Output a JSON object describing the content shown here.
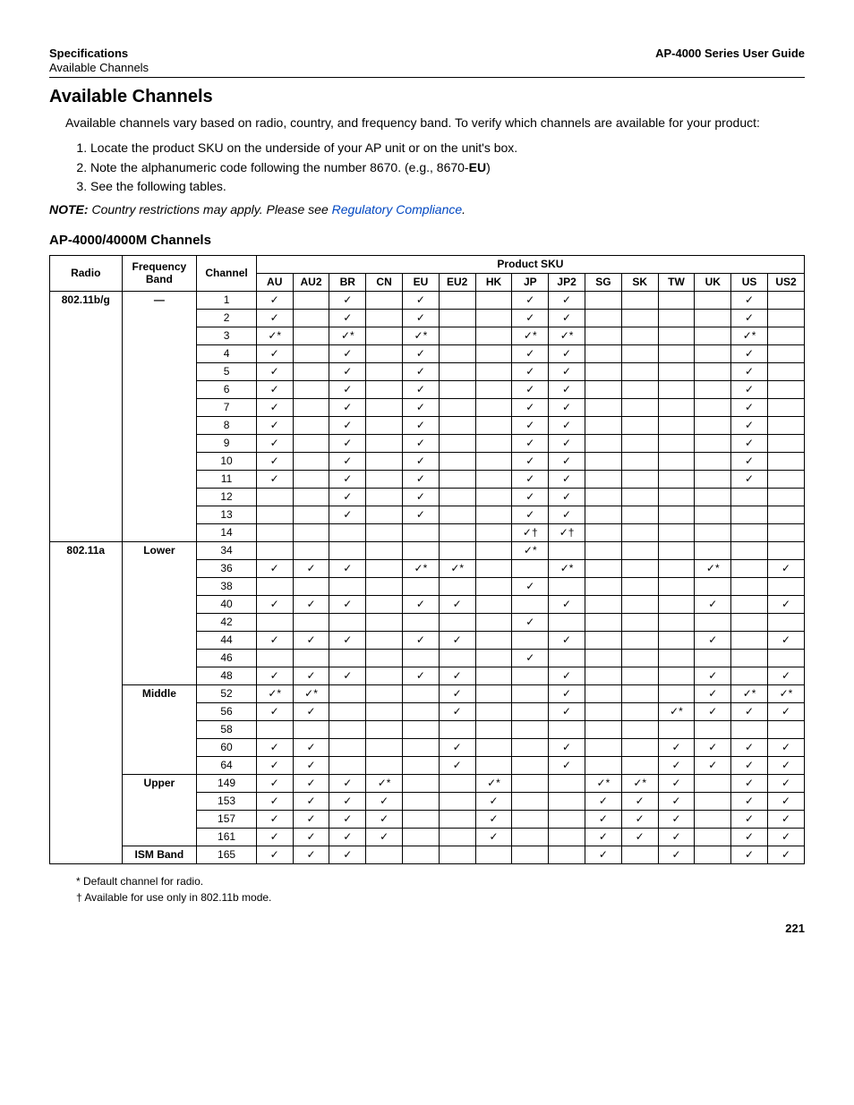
{
  "header": {
    "left_bold": "Specifications",
    "right_bold": "AP-4000 Series User Guide",
    "sub_left": "Available Channels"
  },
  "title": "Available Channels",
  "intro": "Available channels vary based on radio, country, and frequency band. To verify which channels are available for your product:",
  "steps": [
    "Locate the product SKU on the underside of your AP unit or on the unit's box.",
    "Note the alphanumeric code following the number 8670. (e.g., 8670-",
    "See the following tables."
  ],
  "step2_bold": "EU",
  "step2_tail": ")",
  "note_label": "NOTE:",
  "note_body": "Country restrictions may apply. Please see ",
  "note_link": "Regulatory Compliance",
  "note_tail": ".",
  "subsection": "AP-4000/4000M Channels",
  "cols": {
    "radio": "Radio",
    "band": "Frequency Band",
    "channel": "Channel",
    "psku": "Product SKU"
  },
  "skus": [
    "AU",
    "AU2",
    "BR",
    "CN",
    "EU",
    "EU2",
    "HK",
    "JP",
    "JP2",
    "SG",
    "SK",
    "TW",
    "UK",
    "US",
    "US2"
  ],
  "check": "✓",
  "star": "✓*",
  "dagger": "✓†",
  "radio_bg": "802.11b/g",
  "band_bg": "—",
  "radio_a": "802.11a",
  "band_lower": "Lower",
  "band_middle": "Middle",
  "band_upper": "Upper",
  "band_ism": "ISM Band",
  "rows_bg": [
    {
      "ch": "1",
      "m": [
        "c",
        "",
        "c",
        "",
        "c",
        "",
        "",
        "c",
        "c",
        "",
        "",
        "",
        "",
        "c",
        ""
      ]
    },
    {
      "ch": "2",
      "m": [
        "c",
        "",
        "c",
        "",
        "c",
        "",
        "",
        "c",
        "c",
        "",
        "",
        "",
        "",
        "c",
        ""
      ]
    },
    {
      "ch": "3",
      "m": [
        "s",
        "",
        "s",
        "",
        "s",
        "",
        "",
        "s",
        "s",
        "",
        "",
        "",
        "",
        "s",
        ""
      ]
    },
    {
      "ch": "4",
      "m": [
        "c",
        "",
        "c",
        "",
        "c",
        "",
        "",
        "c",
        "c",
        "",
        "",
        "",
        "",
        "c",
        ""
      ]
    },
    {
      "ch": "5",
      "m": [
        "c",
        "",
        "c",
        "",
        "c",
        "",
        "",
        "c",
        "c",
        "",
        "",
        "",
        "",
        "c",
        ""
      ]
    },
    {
      "ch": "6",
      "m": [
        "c",
        "",
        "c",
        "",
        "c",
        "",
        "",
        "c",
        "c",
        "",
        "",
        "",
        "",
        "c",
        ""
      ]
    },
    {
      "ch": "7",
      "m": [
        "c",
        "",
        "c",
        "",
        "c",
        "",
        "",
        "c",
        "c",
        "",
        "",
        "",
        "",
        "c",
        ""
      ]
    },
    {
      "ch": "8",
      "m": [
        "c",
        "",
        "c",
        "",
        "c",
        "",
        "",
        "c",
        "c",
        "",
        "",
        "",
        "",
        "c",
        ""
      ]
    },
    {
      "ch": "9",
      "m": [
        "c",
        "",
        "c",
        "",
        "c",
        "",
        "",
        "c",
        "c",
        "",
        "",
        "",
        "",
        "c",
        ""
      ]
    },
    {
      "ch": "10",
      "m": [
        "c",
        "",
        "c",
        "",
        "c",
        "",
        "",
        "c",
        "c",
        "",
        "",
        "",
        "",
        "c",
        ""
      ]
    },
    {
      "ch": "11",
      "m": [
        "c",
        "",
        "c",
        "",
        "c",
        "",
        "",
        "c",
        "c",
        "",
        "",
        "",
        "",
        "c",
        ""
      ]
    },
    {
      "ch": "12",
      "m": [
        "",
        "",
        "c",
        "",
        "c",
        "",
        "",
        "c",
        "c",
        "",
        "",
        "",
        "",
        "",
        ""
      ]
    },
    {
      "ch": "13",
      "m": [
        "",
        "",
        "c",
        "",
        "c",
        "",
        "",
        "c",
        "c",
        "",
        "",
        "",
        "",
        "",
        ""
      ]
    },
    {
      "ch": "14",
      "m": [
        "",
        "",
        "",
        "",
        "",
        "",
        "",
        "d",
        "d",
        "",
        "",
        "",
        "",
        "",
        ""
      ]
    }
  ],
  "rows_lower": [
    {
      "ch": "34",
      "m": [
        "",
        "",
        "",
        "",
        "",
        "",
        "",
        "s",
        "",
        "",
        "",
        "",
        "",
        "",
        ""
      ]
    },
    {
      "ch": "36",
      "m": [
        "c",
        "c",
        "c",
        "",
        "s",
        "s",
        "",
        "",
        "s",
        "",
        "",
        "",
        "s",
        "",
        "c"
      ]
    },
    {
      "ch": "38",
      "m": [
        "",
        "",
        "",
        "",
        "",
        "",
        "",
        "c",
        "",
        "",
        "",
        "",
        "",
        "",
        ""
      ]
    },
    {
      "ch": "40",
      "m": [
        "c",
        "c",
        "c",
        "",
        "c",
        "c",
        "",
        "",
        "c",
        "",
        "",
        "",
        "c",
        "",
        "c"
      ]
    },
    {
      "ch": "42",
      "m": [
        "",
        "",
        "",
        "",
        "",
        "",
        "",
        "c",
        "",
        "",
        "",
        "",
        "",
        "",
        ""
      ]
    },
    {
      "ch": "44",
      "m": [
        "c",
        "c",
        "c",
        "",
        "c",
        "c",
        "",
        "",
        "c",
        "",
        "",
        "",
        "c",
        "",
        "c"
      ]
    },
    {
      "ch": "46",
      "m": [
        "",
        "",
        "",
        "",
        "",
        "",
        "",
        "c",
        "",
        "",
        "",
        "",
        "",
        "",
        ""
      ]
    },
    {
      "ch": "48",
      "m": [
        "c",
        "c",
        "c",
        "",
        "c",
        "c",
        "",
        "",
        "c",
        "",
        "",
        "",
        "c",
        "",
        "c"
      ]
    }
  ],
  "rows_middle": [
    {
      "ch": "52",
      "m": [
        "s",
        "s",
        "",
        "",
        "",
        "c",
        "",
        "",
        "c",
        "",
        "",
        "",
        "c",
        "s",
        "s"
      ]
    },
    {
      "ch": "56",
      "m": [
        "c",
        "c",
        "",
        "",
        "",
        "c",
        "",
        "",
        "c",
        "",
        "",
        "s",
        "c",
        "c",
        "c"
      ]
    },
    {
      "ch": "58",
      "m": [
        "",
        "",
        "",
        "",
        "",
        "",
        "",
        "",
        "",
        "",
        "",
        "",
        "",
        "",
        ""
      ]
    },
    {
      "ch": "60",
      "m": [
        "c",
        "c",
        "",
        "",
        "",
        "c",
        "",
        "",
        "c",
        "",
        "",
        "c",
        "c",
        "c",
        "c"
      ]
    },
    {
      "ch": "64",
      "m": [
        "c",
        "c",
        "",
        "",
        "",
        "c",
        "",
        "",
        "c",
        "",
        "",
        "c",
        "c",
        "c",
        "c"
      ]
    }
  ],
  "rows_upper": [
    {
      "ch": "149",
      "m": [
        "c",
        "c",
        "c",
        "s",
        "",
        "",
        "s",
        "",
        "",
        "s",
        "s",
        "c",
        "",
        "c",
        "c"
      ]
    },
    {
      "ch": "153",
      "m": [
        "c",
        "c",
        "c",
        "c",
        "",
        "",
        "c",
        "",
        "",
        "c",
        "c",
        "c",
        "",
        "c",
        "c"
      ]
    },
    {
      "ch": "157",
      "m": [
        "c",
        "c",
        "c",
        "c",
        "",
        "",
        "c",
        "",
        "",
        "c",
        "c",
        "c",
        "",
        "c",
        "c"
      ]
    },
    {
      "ch": "161",
      "m": [
        "c",
        "c",
        "c",
        "c",
        "",
        "",
        "c",
        "",
        "",
        "c",
        "c",
        "c",
        "",
        "c",
        "c"
      ]
    }
  ],
  "rows_ism": [
    {
      "ch": "165",
      "m": [
        "c",
        "c",
        "c",
        "",
        "",
        "",
        "",
        "",
        "",
        "c",
        "",
        "c",
        "",
        "c",
        "c"
      ]
    }
  ],
  "fn1": "*   Default channel for radio.",
  "fn2": "†   Available for use only in 802.11b mode.",
  "page": "221"
}
